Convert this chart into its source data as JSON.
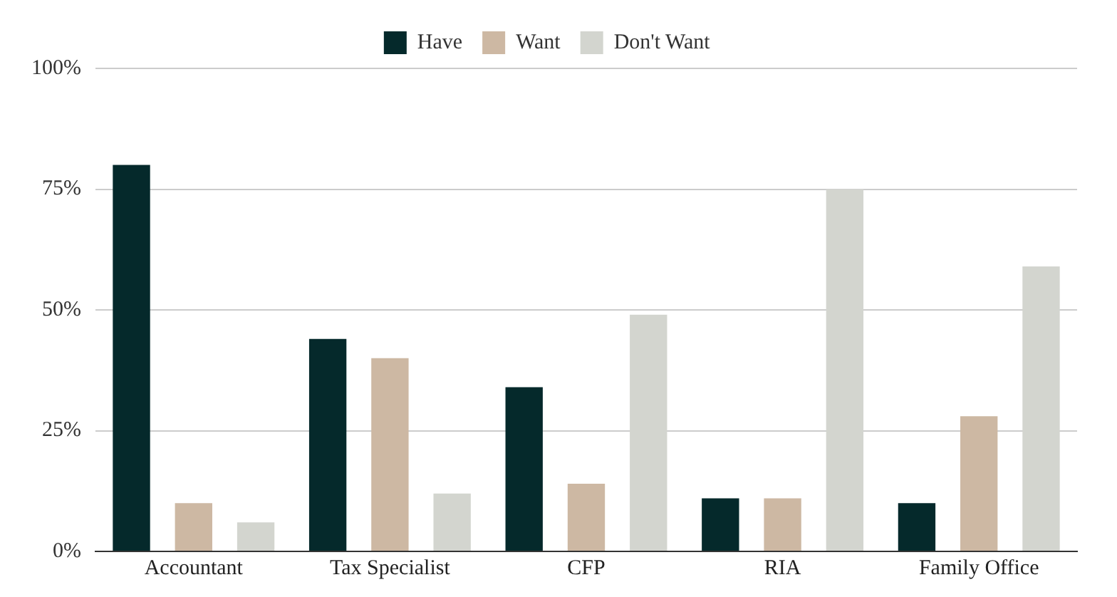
{
  "chart_data": {
    "type": "bar",
    "categories": [
      "Accountant",
      "Tax Specialist",
      "CFP",
      "RIA",
      "Family Office"
    ],
    "series": [
      {
        "name": "Have",
        "color": "#05292b",
        "values": [
          80,
          44,
          34,
          11,
          10
        ]
      },
      {
        "name": "Want",
        "color": "#cdb8a3",
        "values": [
          10,
          40,
          14,
          11,
          28
        ]
      },
      {
        "name": "Don't Want",
        "color": "#d3d5cf",
        "values": [
          6,
          12,
          49,
          75,
          59
        ]
      }
    ],
    "ylim": [
      0,
      100
    ],
    "yticks": [
      {
        "value": 0,
        "label": "0%"
      },
      {
        "value": 25,
        "label": "25%"
      },
      {
        "value": 50,
        "label": "50%"
      },
      {
        "value": 75,
        "label": "75%"
      },
      {
        "value": 100,
        "label": "100%"
      }
    ],
    "grid": "y",
    "legend": "top"
  }
}
